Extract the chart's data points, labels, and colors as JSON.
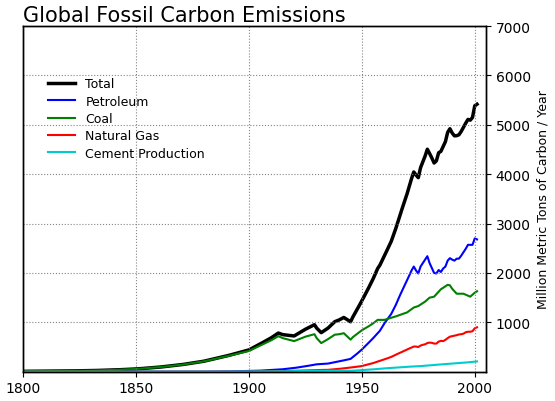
{
  "title": "Global Fossil Carbon Emissions",
  "ylabel_right": "Million Metric Tons of Carbon / Year",
  "xlim": [
    1800,
    2005
  ],
  "ylim": [
    0,
    7000
  ],
  "yticks": [
    1000,
    2000,
    3000,
    4000,
    5000,
    6000,
    7000
  ],
  "xticks": [
    1800,
    1850,
    1900,
    1950,
    2000
  ],
  "grid_color": "#777777",
  "bg_color": "#ffffff",
  "legend_items": [
    {
      "label": "Total",
      "color": "#000000",
      "lw": 2.5
    },
    {
      "label": "Petroleum",
      "color": "#0000ff",
      "lw": 1.5
    },
    {
      "label": "Coal",
      "color": "#008000",
      "lw": 1.5
    },
    {
      "label": "Natural Gas",
      "color": "#ff0000",
      "lw": 1.5
    },
    {
      "label": "Cement Production",
      "color": "#00cccc",
      "lw": 1.5
    }
  ],
  "title_fontsize": 15,
  "tick_fontsize": 10,
  "ylabel_fontsize": 9
}
